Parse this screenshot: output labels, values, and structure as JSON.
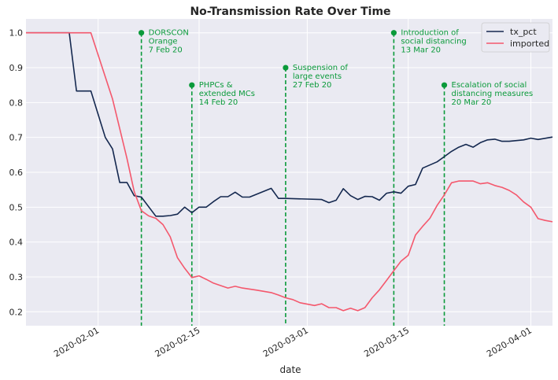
{
  "chart_data": {
    "type": "line",
    "title": "No-Transmission Rate Over Time",
    "xlabel": "date",
    "ylabel": "",
    "xlim": [
      "2020-01-22",
      "2020-04-04"
    ],
    "ylim": [
      0.16,
      1.04
    ],
    "grid": true,
    "legend_placement": "top-right",
    "x_ticks": [
      "2020-02-01",
      "2020-02-15",
      "2020-03-01",
      "2020-03-15",
      "2020-04-01"
    ],
    "y_ticks": [
      0.2,
      0.3,
      0.4,
      0.5,
      0.6,
      0.7,
      0.8,
      0.9,
      1.0
    ],
    "y_tick_labels": [
      "0.2",
      "0.3",
      "0.4",
      "0.5",
      "0.6",
      "0.7",
      "0.8",
      "0.9",
      "1.0"
    ],
    "series": [
      {
        "name": "tx_pct",
        "color": "#14284f",
        "points": [
          [
            "2020-01-22",
            1.0
          ],
          [
            "2020-01-27",
            1.0
          ],
          [
            "2020-01-28",
            1.0
          ],
          [
            "2020-01-29",
            0.833
          ],
          [
            "2020-01-31",
            0.833
          ],
          [
            "2020-02-02",
            0.7
          ],
          [
            "2020-02-03",
            0.667
          ],
          [
            "2020-02-04",
            0.571
          ],
          [
            "2020-02-05",
            0.571
          ],
          [
            "2020-02-06",
            0.533
          ],
          [
            "2020-02-07",
            0.529
          ],
          [
            "2020-02-09",
            0.474
          ],
          [
            "2020-02-10",
            0.474
          ],
          [
            "2020-02-11",
            0.476
          ],
          [
            "2020-02-12",
            0.48
          ],
          [
            "2020-02-13",
            0.5
          ],
          [
            "2020-02-14",
            0.484
          ],
          [
            "2020-02-15",
            0.5
          ],
          [
            "2020-02-16",
            0.5
          ],
          [
            "2020-02-17",
            0.516
          ],
          [
            "2020-02-18",
            0.53
          ],
          [
            "2020-02-19",
            0.53
          ],
          [
            "2020-02-20",
            0.543
          ],
          [
            "2020-02-21",
            0.529
          ],
          [
            "2020-02-22",
            0.529
          ],
          [
            "2020-02-25",
            0.554
          ],
          [
            "2020-02-26",
            0.525
          ],
          [
            "2020-02-27",
            0.525
          ],
          [
            "2020-03-03",
            0.522
          ],
          [
            "2020-03-04",
            0.513
          ],
          [
            "2020-03-05",
            0.52
          ],
          [
            "2020-03-06",
            0.553
          ],
          [
            "2020-03-07",
            0.533
          ],
          [
            "2020-03-08",
            0.522
          ],
          [
            "2020-03-09",
            0.531
          ],
          [
            "2020-03-10",
            0.53
          ],
          [
            "2020-03-11",
            0.52
          ],
          [
            "2020-03-12",
            0.54
          ],
          [
            "2020-03-13",
            0.544
          ],
          [
            "2020-03-14",
            0.54
          ],
          [
            "2020-03-15",
            0.56
          ],
          [
            "2020-03-16",
            0.565
          ],
          [
            "2020-03-17",
            0.612
          ],
          [
            "2020-03-19",
            0.63
          ],
          [
            "2020-03-20",
            0.645
          ],
          [
            "2020-03-21",
            0.66
          ],
          [
            "2020-03-22",
            0.672
          ],
          [
            "2020-03-23",
            0.68
          ],
          [
            "2020-03-24",
            0.672
          ],
          [
            "2020-03-25",
            0.685
          ],
          [
            "2020-03-26",
            0.693
          ],
          [
            "2020-03-27",
            0.695
          ],
          [
            "2020-03-28",
            0.689
          ],
          [
            "2020-03-29",
            0.689
          ],
          [
            "2020-03-31",
            0.693
          ],
          [
            "2020-04-01",
            0.698
          ],
          [
            "2020-04-02",
            0.694
          ],
          [
            "2020-04-04",
            0.701
          ]
        ]
      },
      {
        "name": "imported",
        "color": "#f4586d",
        "points": [
          [
            "2020-01-22",
            1.0
          ],
          [
            "2020-01-31",
            1.0
          ],
          [
            "2020-02-03",
            0.81
          ],
          [
            "2020-02-05",
            0.64
          ],
          [
            "2020-02-06",
            0.545
          ],
          [
            "2020-02-07",
            0.49
          ],
          [
            "2020-02-08",
            0.475
          ],
          [
            "2020-02-09",
            0.468
          ],
          [
            "2020-02-10",
            0.45
          ],
          [
            "2020-02-11",
            0.415
          ],
          [
            "2020-02-12",
            0.355
          ],
          [
            "2020-02-13",
            0.325
          ],
          [
            "2020-02-14",
            0.298
          ],
          [
            "2020-02-15",
            0.303
          ],
          [
            "2020-02-16",
            0.293
          ],
          [
            "2020-02-17",
            0.282
          ],
          [
            "2020-02-18",
            0.275
          ],
          [
            "2020-02-19",
            0.268
          ],
          [
            "2020-02-20",
            0.273
          ],
          [
            "2020-02-21",
            0.268
          ],
          [
            "2020-02-23",
            0.262
          ],
          [
            "2020-02-25",
            0.255
          ],
          [
            "2020-02-26",
            0.248
          ],
          [
            "2020-02-27",
            0.24
          ],
          [
            "2020-02-28",
            0.235
          ],
          [
            "2020-02-29",
            0.226
          ],
          [
            "2020-03-02",
            0.218
          ],
          [
            "2020-03-03",
            0.223
          ],
          [
            "2020-03-04",
            0.212
          ],
          [
            "2020-03-05",
            0.212
          ],
          [
            "2020-03-06",
            0.203
          ],
          [
            "2020-03-07",
            0.21
          ],
          [
            "2020-03-08",
            0.203
          ],
          [
            "2020-03-09",
            0.212
          ],
          [
            "2020-03-10",
            0.24
          ],
          [
            "2020-03-11",
            0.263
          ],
          [
            "2020-03-12",
            0.29
          ],
          [
            "2020-03-13",
            0.318
          ],
          [
            "2020-03-14",
            0.345
          ],
          [
            "2020-03-15",
            0.362
          ],
          [
            "2020-03-16",
            0.42
          ],
          [
            "2020-03-17",
            0.445
          ],
          [
            "2020-03-18",
            0.468
          ],
          [
            "2020-03-19",
            0.505
          ],
          [
            "2020-03-20",
            0.535
          ],
          [
            "2020-03-21",
            0.57
          ],
          [
            "2020-03-22",
            0.575
          ],
          [
            "2020-03-24",
            0.575
          ],
          [
            "2020-03-25",
            0.567
          ],
          [
            "2020-03-26",
            0.57
          ],
          [
            "2020-03-27",
            0.562
          ],
          [
            "2020-03-28",
            0.557
          ],
          [
            "2020-03-29",
            0.548
          ],
          [
            "2020-03-30",
            0.535
          ],
          [
            "2020-03-31",
            0.515
          ],
          [
            "2020-04-01",
            0.5
          ],
          [
            "2020-04-02",
            0.467
          ],
          [
            "2020-04-03",
            0.462
          ],
          [
            "2020-04-04",
            0.458
          ]
        ]
      }
    ],
    "annotations": [
      {
        "date": "2020-02-07",
        "marker_y": 1.0,
        "color": "#0a9a3a",
        "lines": [
          "DORSCON",
          "Orange",
          "7 Feb 20"
        ]
      },
      {
        "date": "2020-02-14",
        "marker_y": 0.85,
        "color": "#0a9a3a",
        "lines": [
          "PHPCs &",
          "extended MCs",
          "14 Feb 20"
        ]
      },
      {
        "date": "2020-02-27",
        "marker_y": 0.9,
        "color": "#0a9a3a",
        "lines": [
          "Suspension of",
          "large events",
          "27 Feb 20"
        ]
      },
      {
        "date": "2020-03-13",
        "marker_y": 1.0,
        "color": "#0a9a3a",
        "lines": [
          "Introduction of",
          "social distancing",
          "13 Mar 20"
        ]
      },
      {
        "date": "2020-03-20",
        "marker_y": 0.85,
        "color": "#0a9a3a",
        "lines": [
          "Escalation of social",
          "distancing measures",
          "20 Mar 20"
        ]
      }
    ]
  }
}
